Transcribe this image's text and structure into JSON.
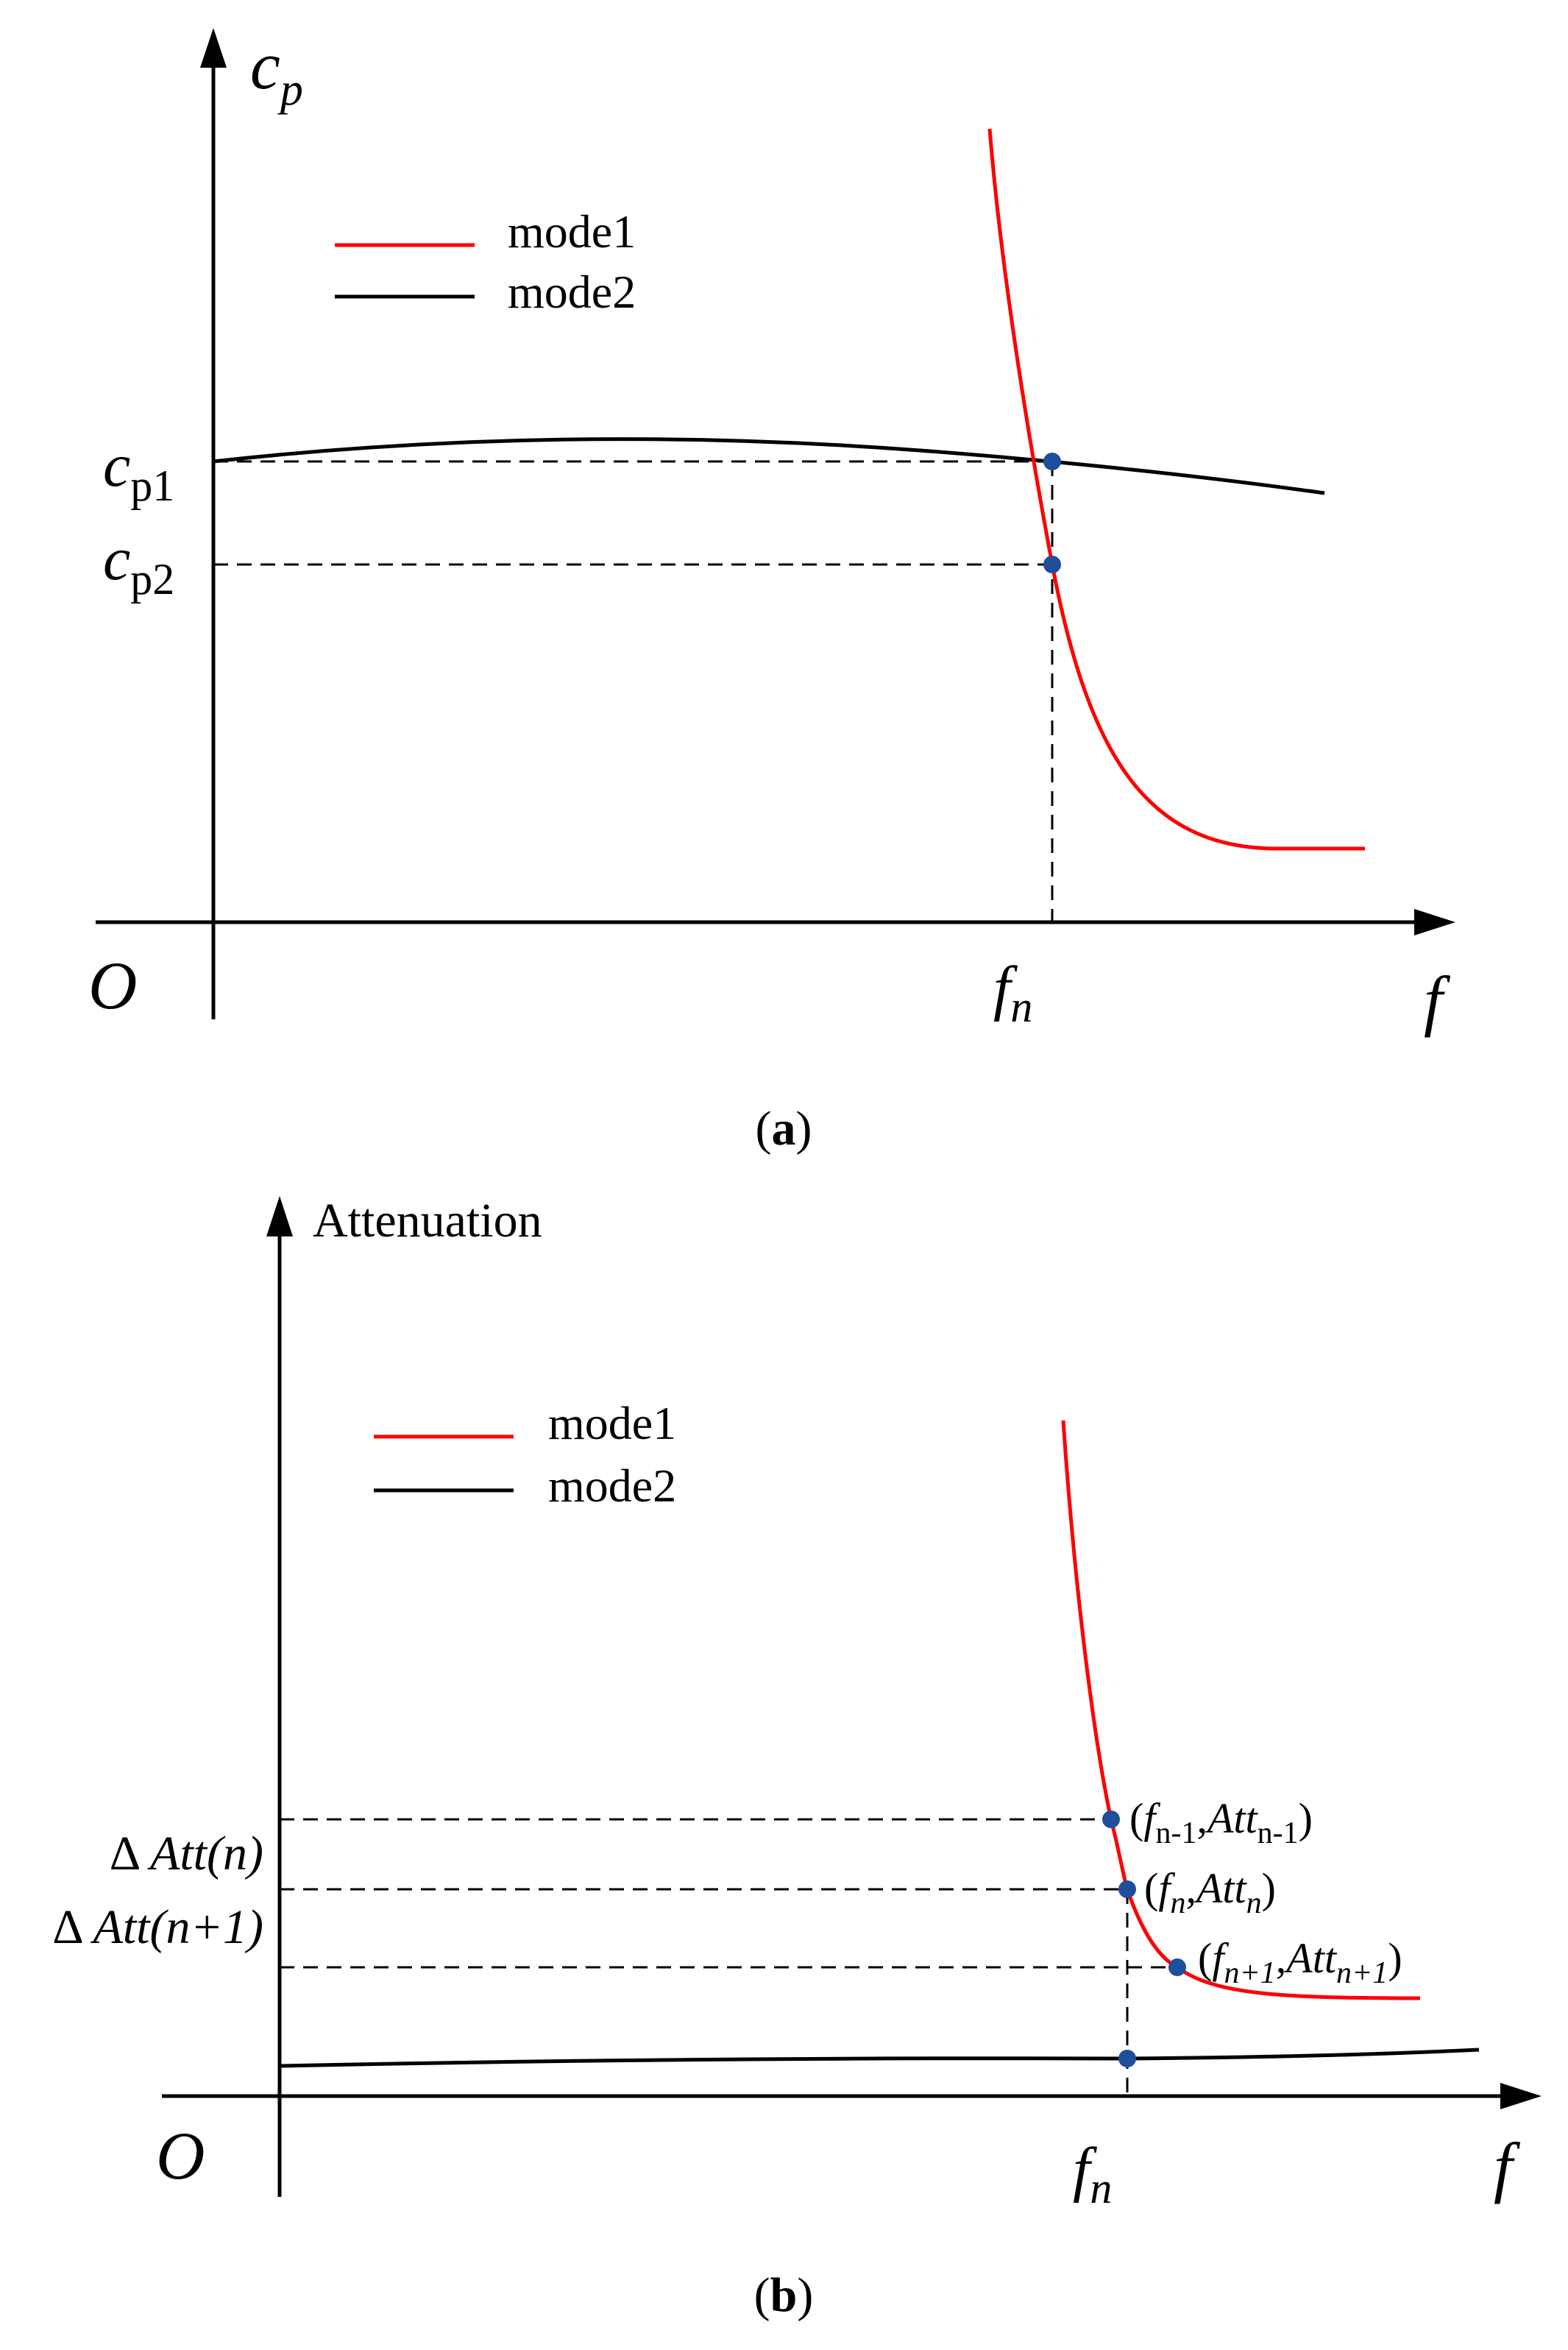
{
  "colors": {
    "mode1": "#ff0000",
    "mode2": "#000000",
    "marker": "#1f4e9a"
  },
  "panel_a": {
    "caption": "a",
    "y_axis_symbol": "c",
    "y_axis_sub": "p",
    "x_axis_symbol": "f",
    "origin": "O",
    "legend": [
      "mode1",
      "mode2"
    ],
    "y_ticks": [
      {
        "symbol": "c",
        "sub": "p1"
      },
      {
        "symbol": "c",
        "sub": "p2"
      }
    ],
    "x_tick": {
      "symbol": "f",
      "sub": "n"
    }
  },
  "panel_b": {
    "caption": "b",
    "y_axis_label": "Attenuation",
    "x_axis_symbol": "f",
    "origin": "O",
    "legend": [
      "mode1",
      "mode2"
    ],
    "y_ticks": [
      {
        "prefix": "Δ ",
        "main": "Att",
        "arg": "(n)"
      },
      {
        "prefix": "Δ ",
        "main": "Att",
        "arg": "(n+1)"
      }
    ],
    "x_tick": {
      "symbol": "f",
      "sub": "n"
    },
    "points": [
      {
        "f_sub": "n-1",
        "att_sub": "n-1"
      },
      {
        "f_sub": "n",
        "att_sub": "n"
      },
      {
        "f_sub": "n+1",
        "att_sub": "n+1"
      }
    ]
  }
}
